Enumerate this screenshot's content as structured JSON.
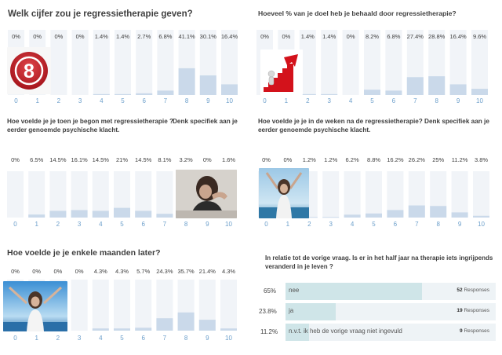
{
  "chart_data": [
    {
      "id": "q1",
      "type": "bar",
      "title": "Welk cijfer zou je regressietherapie geven?",
      "subtitle": "",
      "categories": [
        "0",
        "1",
        "2",
        "3",
        "4",
        "5",
        "6",
        "7",
        "8",
        "9",
        "10"
      ],
      "labels": [
        "0%",
        "0%",
        "0%",
        "0%",
        "1.4%",
        "1.4%",
        "2.7%",
        "6.8%",
        "41.1%",
        "30.1%",
        "16.4%"
      ],
      "values": [
        0,
        0,
        0,
        0,
        1.4,
        1.4,
        2.7,
        6.8,
        41.1,
        30.1,
        16.4
      ],
      "ylim": [
        0,
        100
      ],
      "image": {
        "icon": "number-8-badge-icon",
        "text": "8"
      }
    },
    {
      "id": "q2",
      "type": "bar",
      "title": "Hoeveel % van je doel heb je behaald door regressietherapie?",
      "subtitle": "",
      "categories": [
        "0",
        "1",
        "2",
        "3",
        "4",
        "5",
        "6",
        "7",
        "8",
        "9",
        "10"
      ],
      "labels": [
        "0%",
        "0%",
        "1.4%",
        "1.4%",
        "0%",
        "8.2%",
        "6.8%",
        "27.4%",
        "28.8%",
        "16.4%",
        "9.6%"
      ],
      "values": [
        0,
        0,
        1.4,
        1.4,
        0,
        8.2,
        6.8,
        27.4,
        28.8,
        16.4,
        9.6
      ],
      "ylim": [
        0,
        100
      ],
      "image": {
        "icon": "stairs-to-goal-icon"
      }
    },
    {
      "id": "q3",
      "type": "bar",
      "title": "Hoe voelde je je toen je begon met regressietherapie ?",
      "subtitle": "eerder genoemde psychische klacht.",
      "title_extra": "Denk specifiek aan je",
      "categories": [
        "0",
        "1",
        "2",
        "3",
        "4",
        "5",
        "6",
        "7",
        "8",
        "9",
        "10"
      ],
      "labels": [
        "0%",
        "6.5%",
        "14.5%",
        "16.1%",
        "14.5%",
        "21%",
        "14.5%",
        "8.1%",
        "3.2%",
        "0%",
        "1.6%"
      ],
      "values": [
        0,
        6.5,
        14.5,
        16.1,
        14.5,
        21,
        14.5,
        8.1,
        3.2,
        0,
        1.6
      ],
      "ylim": [
        0,
        100
      ],
      "image": {
        "icon": "sad-woman-photo-icon"
      }
    },
    {
      "id": "q4",
      "type": "bar",
      "title": "Hoe voelde je je in de weken na de regressietherapie? Denk specifiek aan je",
      "subtitle": "eerder genoemde psychische klacht.",
      "categories": [
        "0",
        "1",
        "2",
        "3",
        "4",
        "5",
        "6",
        "7",
        "8",
        "9",
        "10"
      ],
      "labels": [
        "0%",
        "0%",
        "1.2%",
        "1.2%",
        "6.2%",
        "8.8%",
        "16.2%",
        "26.2%",
        "25%",
        "11.2%",
        "3.8%"
      ],
      "values": [
        0,
        0,
        1.2,
        1.2,
        6.2,
        8.8,
        16.2,
        26.2,
        25,
        11.2,
        3.8
      ],
      "ylim": [
        0,
        100
      ],
      "image": {
        "icon": "happy-woman-photo-icon"
      }
    },
    {
      "id": "q5",
      "type": "bar",
      "title": "Hoe voelde je je enkele maanden later?",
      "subtitle": "",
      "categories": [
        "0",
        "1",
        "2",
        "3",
        "4",
        "5",
        "6",
        "7",
        "8",
        "9",
        "10"
      ],
      "labels": [
        "0%",
        "0%",
        "0%",
        "0%",
        "4.3%",
        "4.3%",
        "5.7%",
        "24.3%",
        "35.7%",
        "21.4%",
        "4.3%"
      ],
      "values": [
        0,
        0,
        0,
        0,
        4.3,
        4.3,
        5.7,
        24.3,
        35.7,
        21.4,
        4.3
      ],
      "ylim": [
        0,
        100
      ],
      "image": {
        "icon": "happy-woman-photo-icon"
      }
    },
    {
      "id": "q6",
      "type": "bar",
      "orientation": "horizontal",
      "title": "In relatie tot de vorige vraag. Is er in het half jaar na therapie iets ingrijpends",
      "subtitle": "veranderd in je leven ?",
      "rows": [
        {
          "pct": "65%",
          "value": 65,
          "label": "nee",
          "count": "52",
          "unit": "Responses"
        },
        {
          "pct": "23.8%",
          "value": 23.8,
          "label": "ja",
          "count": "19",
          "unit": "Responses"
        },
        {
          "pct": "11.2%",
          "value": 11.2,
          "label": "n.v.t. ik heb de vorige vraag niet ingevuld",
          "count": "9",
          "unit": "Responses"
        }
      ],
      "xlim": [
        0,
        100
      ]
    }
  ],
  "colors": {
    "track": "#f1f4f8",
    "fill": "#cad9ea",
    "tick": "#6c9fcb",
    "hfill": "#cfe5e8",
    "htrack": "#eef3f6",
    "badge_red": "#c8242b",
    "stairs_red": "#d3121b"
  }
}
